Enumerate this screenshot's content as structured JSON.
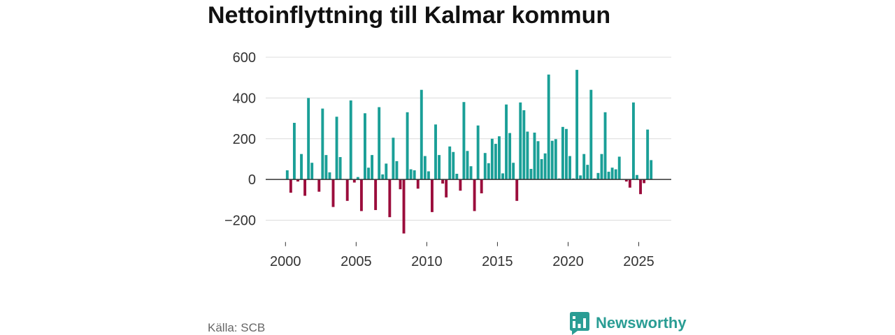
{
  "source": "Källa: SCB",
  "logo": {
    "text": "Newsworthy",
    "icon": "bar-chart-speech-bubble-icon"
  },
  "colors": {
    "positive": "#1a9f97",
    "negative": "#9b0d3c",
    "grid": "#dcdcdc",
    "zero_line": "#333333",
    "logo": "#2a9d94"
  },
  "chart_data": {
    "type": "bar",
    "title": "Nettoinflyttning till Kalmar kommun",
    "xlabel": "",
    "ylabel": "",
    "period_start": 2000,
    "period_step": 0.25,
    "values": [
      45,
      -65,
      278,
      -10,
      125,
      -80,
      400,
      82,
      0,
      -60,
      348,
      120,
      35,
      -135,
      308,
      110,
      0,
      -105,
      388,
      -15,
      12,
      -155,
      325,
      58,
      120,
      -150,
      355,
      25,
      78,
      -185,
      205,
      90,
      -48,
      -265,
      330,
      50,
      45,
      -45,
      440,
      115,
      40,
      -160,
      270,
      120,
      -20,
      -88,
      162,
      135,
      28,
      -55,
      380,
      140,
      65,
      -155,
      265,
      -68,
      130,
      80,
      200,
      175,
      212,
      30,
      368,
      228,
      82,
      -105,
      378,
      340,
      235,
      52,
      230,
      188,
      100,
      128,
      515,
      190,
      198,
      5,
      258,
      248,
      115,
      5,
      538,
      20,
      125,
      72,
      440,
      5,
      32,
      125,
      330,
      38,
      58,
      50,
      112,
      0,
      -10,
      -40,
      378,
      22,
      -72,
      -18,
      245,
      95
    ],
    "xlim": [
      1998.6,
      2027.3
    ],
    "ylim": [
      -300,
      600
    ],
    "yticks": [
      -200,
      0,
      200,
      400,
      600
    ],
    "ytick_labels": [
      "−200",
      "0",
      "200",
      "400",
      "600"
    ],
    "xticks": [
      2000,
      2005,
      2010,
      2015,
      2020,
      2025
    ],
    "xtick_labels": [
      "2000",
      "2005",
      "2010",
      "2015",
      "2020",
      "2025"
    ],
    "grid": true
  }
}
